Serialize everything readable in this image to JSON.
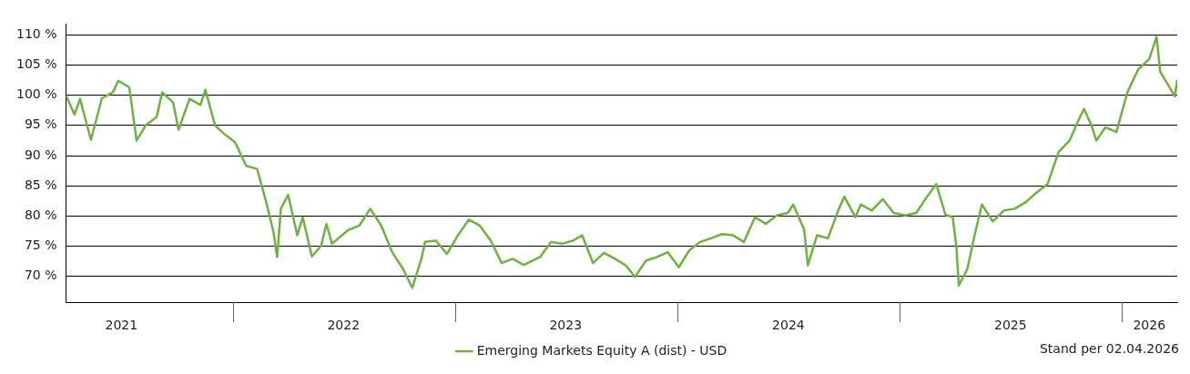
{
  "chart_data": {
    "type": "line",
    "xlim": [
      "2021-04-02",
      "2026-04-02"
    ],
    "ylim": [
      65.7,
      111.8
    ],
    "xticks": [
      {
        "value": "2021-07-02",
        "label": "2021"
      },
      {
        "value": "2022-07-02",
        "label": "2022"
      },
      {
        "value": "2023-07-02",
        "label": "2023"
      },
      {
        "value": "2024-07-02",
        "label": "2024"
      },
      {
        "value": "2025-07-02",
        "label": "2025"
      },
      {
        "value": "2026-02-15",
        "label": "2026"
      }
    ],
    "yticks": [
      {
        "value": 70,
        "label": "70 %"
      },
      {
        "value": 75,
        "label": "75 %"
      },
      {
        "value": 80,
        "label": "80 %"
      },
      {
        "value": 85,
        "label": "85 %"
      },
      {
        "value": 90,
        "label": "90 %"
      },
      {
        "value": 95,
        "label": "95 %"
      },
      {
        "value": 100,
        "label": "100 %"
      },
      {
        "value": 105,
        "label": "105 %"
      },
      {
        "value": 110,
        "label": "110 %"
      }
    ],
    "grid": "y",
    "legend": "bottom",
    "marker": "none",
    "line_style": "solid",
    "annotations": [
      "Stand per 02.04.2026"
    ],
    "x": [
      "2021-04-02",
      "2021-04-16",
      "2021-04-25",
      "2021-05-13",
      "2021-05-31",
      "2021-06-18",
      "2021-06-27",
      "2021-07-15",
      "2021-07-27",
      "2021-08-11",
      "2021-08-29",
      "2021-09-07",
      "2021-09-25",
      "2021-10-04",
      "2021-10-22",
      "2021-11-09",
      "2021-11-17",
      "2021-12-03",
      "2021-12-18",
      "2022-01-05",
      "2022-01-23",
      "2022-02-10",
      "2022-02-25",
      "2022-03-09",
      "2022-03-15",
      "2022-03-21",
      "2022-04-02",
      "2022-04-17",
      "2022-04-26",
      "2022-05-11",
      "2022-05-26",
      "2022-06-04",
      "2022-06-13",
      "2022-07-10",
      "2022-07-28",
      "2022-08-15",
      "2022-09-02",
      "2022-09-20",
      "2022-10-08",
      "2022-10-23",
      "2022-11-07",
      "2022-11-13",
      "2022-12-01",
      "2022-12-19",
      "2023-01-06",
      "2023-01-24",
      "2023-02-11",
      "2023-03-01",
      "2023-03-19",
      "2023-04-06",
      "2023-04-24",
      "2023-05-21",
      "2023-06-08",
      "2023-06-26",
      "2023-07-14",
      "2023-07-29",
      "2023-08-16",
      "2023-09-03",
      "2023-09-21",
      "2023-10-09",
      "2023-10-24",
      "2023-11-11",
      "2023-11-29",
      "2023-12-17",
      "2024-01-04",
      "2024-01-21",
      "2024-02-08",
      "2024-02-26",
      "2024-03-15",
      "2024-04-02",
      "2024-04-20",
      "2024-05-08",
      "2024-05-26",
      "2024-06-13",
      "2024-07-01",
      "2024-07-10",
      "2024-07-28",
      "2024-08-03",
      "2024-08-18",
      "2024-09-05",
      "2024-09-23",
      "2024-10-02",
      "2024-10-20",
      "2024-10-29",
      "2024-11-16",
      "2024-12-04",
      "2024-12-22",
      "2025-01-10",
      "2025-01-28",
      "2025-02-15",
      "2025-03-02",
      "2025-03-17",
      "2025-03-29",
      "2025-04-04",
      "2025-04-08",
      "2025-04-22",
      "2025-05-04",
      "2025-05-16",
      "2025-06-03",
      "2025-06-21",
      "2025-07-09",
      "2025-07-27",
      "2025-08-14",
      "2025-09-01",
      "2025-09-19",
      "2025-10-07",
      "2025-10-25",
      "2025-10-31",
      "2025-11-12",
      "2025-11-20",
      "2025-12-05",
      "2025-12-23",
      "2026-01-10",
      "2026-01-28",
      "2026-02-15",
      "2026-02-27",
      "2026-03-05",
      "2026-03-17",
      "2026-03-29",
      "2026-04-02"
    ],
    "series": [
      {
        "name": "Emerging Markets Equity A (dist) - USD",
        "color": "#6db33f",
        "values": [
          100,
          96.8,
          99.4,
          92.6,
          99.5,
          100.5,
          102.4,
          101.3,
          92.5,
          95.0,
          96.4,
          100.5,
          98.8,
          94.3,
          99.4,
          98.4,
          100.9,
          95.0,
          93.6,
          92.2,
          88.3,
          87.8,
          82.3,
          77.3,
          73.2,
          81.2,
          83.5,
          76.8,
          79.8,
          73.3,
          75.0,
          78.7,
          75.4,
          77.7,
          78.4,
          81.2,
          78.4,
          74.0,
          71.2,
          68.1,
          72.9,
          75.7,
          75.9,
          73.7,
          76.8,
          79.4,
          78.4,
          75.9,
          72.2,
          72.9,
          71.9,
          73.2,
          75.7,
          75.4,
          75.9,
          76.8,
          72.2,
          73.9,
          72.9,
          71.8,
          69.9,
          72.6,
          73.2,
          74.0,
          71.5,
          74.3,
          75.7,
          76.3,
          77.0,
          76.8,
          75.7,
          79.8,
          78.7,
          80.1,
          80.5,
          81.9,
          77.7,
          71.8,
          76.8,
          76.3,
          81.2,
          83.2,
          79.8,
          81.9,
          80.9,
          82.8,
          80.5,
          80.1,
          80.5,
          83.2,
          85.3,
          80.2,
          79.8,
          75.0,
          68.5,
          71.2,
          76.8,
          81.9,
          79.1,
          80.9,
          81.2,
          82.3,
          83.9,
          85.3,
          90.6,
          92.5,
          96.6,
          97.7,
          95.0,
          92.5,
          94.7,
          93.9,
          100.5,
          104.3,
          106.0,
          109.7,
          103.9,
          101.9,
          99.8,
          102.6
        ]
      }
    ]
  }
}
